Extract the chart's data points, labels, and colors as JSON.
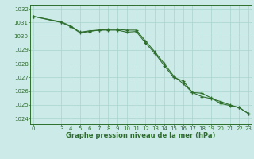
{
  "title": "Graphe pression niveau de la mer (hPa)",
  "background_color": "#cceae7",
  "grid_color": "#aad4d0",
  "line_color": "#2d6e2d",
  "x_hours": [
    0,
    3,
    4,
    5,
    6,
    7,
    8,
    9,
    10,
    11,
    12,
    13,
    14,
    15,
    16,
    17,
    18,
    19,
    20,
    21,
    22,
    23
  ],
  "series1": [
    1031.45,
    1031.0,
    1030.7,
    1030.25,
    1030.35,
    1030.45,
    1030.45,
    1030.45,
    1030.3,
    1030.35,
    1029.5,
    1028.75,
    1027.85,
    1027.0,
    1026.75,
    1025.9,
    1025.85,
    1025.5,
    1025.1,
    1024.95,
    1024.8,
    1024.35
  ],
  "series2": [
    1031.45,
    1031.05,
    1030.75,
    1030.3,
    1030.4,
    1030.45,
    1030.5,
    1030.5,
    1030.45,
    1030.45,
    1029.65,
    1028.85,
    1028.0,
    1027.1,
    1026.55,
    1025.9,
    1025.6,
    1025.45,
    1025.25,
    1025.0,
    1024.8,
    1024.35
  ],
  "ylim_min": 1023.6,
  "ylim_max": 1032.3,
  "yticks": [
    1024,
    1025,
    1026,
    1027,
    1028,
    1029,
    1030,
    1031,
    1032
  ],
  "xticks": [
    0,
    3,
    4,
    5,
    6,
    7,
    8,
    9,
    10,
    11,
    12,
    13,
    14,
    15,
    16,
    17,
    18,
    19,
    20,
    21,
    22,
    23
  ],
  "tick_fontsize": 5.0,
  "label_fontsize": 6.0
}
